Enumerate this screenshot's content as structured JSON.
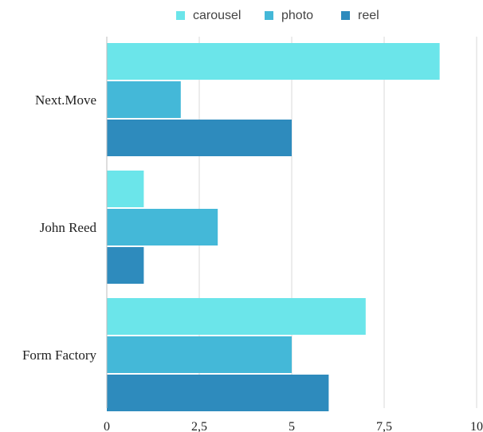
{
  "chart_data": {
    "type": "bar",
    "orientation": "horizontal",
    "categories": [
      "Next.Move",
      "John Reed",
      "Form Factory"
    ],
    "series": [
      {
        "name": "carousel",
        "values": [
          9,
          1,
          7
        ],
        "color": "#6be5ea"
      },
      {
        "name": "photo",
        "values": [
          2,
          3,
          5
        ],
        "color": "#44b8d8"
      },
      {
        "name": "reel",
        "values": [
          5,
          1,
          6
        ],
        "color": "#2e8bbd"
      }
    ],
    "x_ticks": [
      "0",
      "2,5",
      "5",
      "7,5",
      "10"
    ],
    "xlim": [
      0,
      10
    ],
    "grid": true,
    "legend_position": "top"
  }
}
